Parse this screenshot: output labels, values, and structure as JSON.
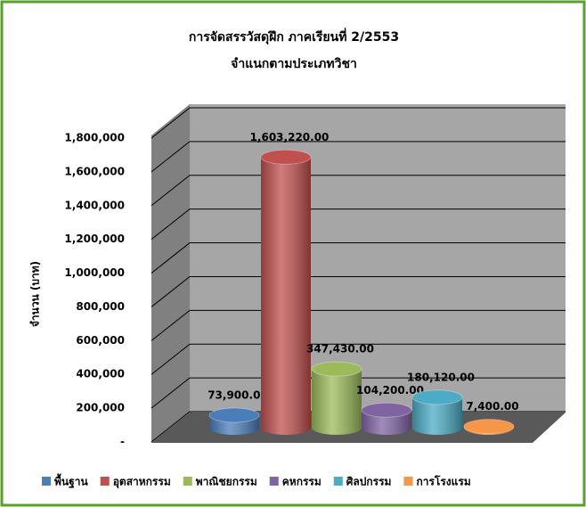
{
  "chart_data": {
    "type": "cylinder-bar",
    "title": "การจัดสรรวัสดุฝึก ภาคเรียนที่ 2/2553",
    "subtitle": "จำแนกตามประเภทวิชา",
    "y_label": "จำนวน (บาท)",
    "categories": [
      null
    ],
    "series": [
      {
        "name": "พื้นฐาน",
        "color": "#4a7ebb",
        "values": [
          73900
        ],
        "value_labels": [
          "73,900.00"
        ]
      },
      {
        "name": "อุตสาหกรรม",
        "color": "#c0504d",
        "values": [
          1603220
        ],
        "value_labels": [
          "1,603,220.00"
        ]
      },
      {
        "name": "พาณิชยกรรม",
        "color": "#9bbb59",
        "values": [
          347430
        ],
        "value_labels": [
          "347,430.00"
        ]
      },
      {
        "name": "คหกรรม",
        "color": "#8064a2",
        "values": [
          104200
        ],
        "value_labels": [
          "104,200.00"
        ]
      },
      {
        "name": "ศิลปกรรม",
        "color": "#4bacc6",
        "values": [
          180120
        ],
        "value_labels": [
          "180,120.00"
        ]
      },
      {
        "name": "การโรงแรม",
        "color": "#f79646",
        "values": [
          7400
        ],
        "value_labels": [
          "7,400.00"
        ]
      }
    ],
    "ylim": [
      0,
      1800000
    ],
    "yticks": [
      {
        "value": 0,
        "label": "-"
      },
      {
        "value": 200000,
        "label": "200,000"
      },
      {
        "value": 400000,
        "label": "400,000"
      },
      {
        "value": 600000,
        "label": "600,000"
      },
      {
        "value": 800000,
        "label": "800,000"
      },
      {
        "value": 1000000,
        "label": "1,000,000"
      },
      {
        "value": 1200000,
        "label": "1,200,000"
      },
      {
        "value": 1400000,
        "label": "1,400,000"
      },
      {
        "value": 1600000,
        "label": "1,600,000"
      },
      {
        "value": 1800000,
        "label": "1,800,000"
      }
    ],
    "grid": true,
    "legend": "bottom"
  }
}
